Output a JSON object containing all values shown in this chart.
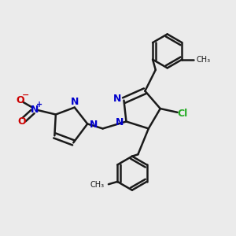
{
  "bg_color": "#ebebeb",
  "bond_color": "#1a1a1a",
  "bond_width": 1.8,
  "figsize": [
    3.0,
    3.0
  ],
  "dpi": 100,
  "xlim": [
    0,
    10
  ],
  "ylim": [
    0,
    10
  ]
}
